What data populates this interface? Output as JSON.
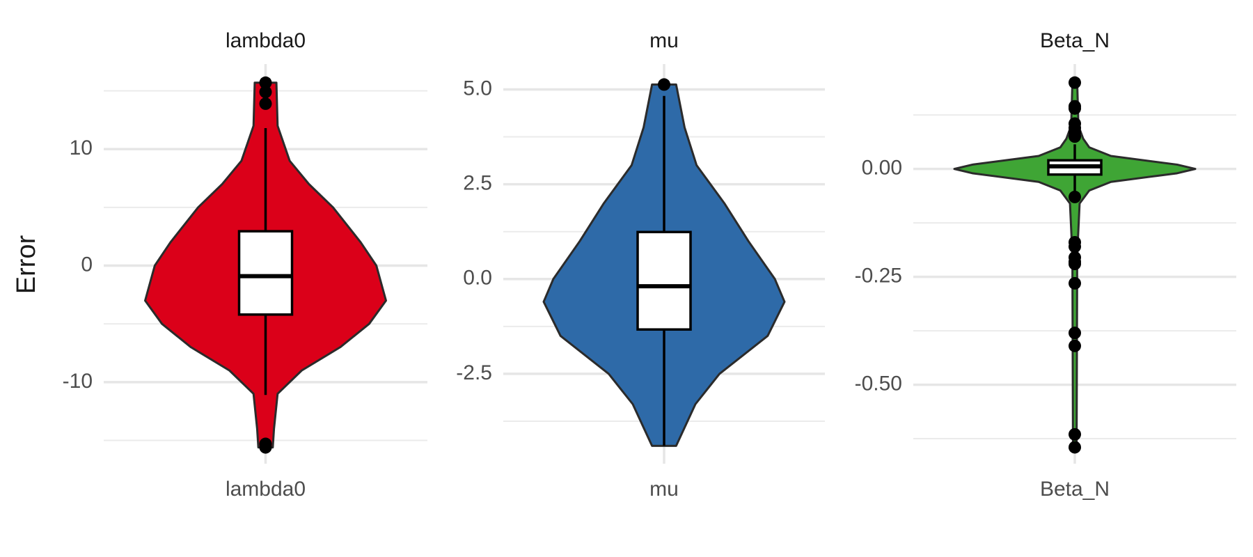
{
  "chart_data": [
    {
      "type": "violin",
      "title": "lambda0",
      "ylabel": "Error",
      "category": "lambda0",
      "color": "#db0019",
      "ylim": [
        -17,
        17.3
      ],
      "yticks": [
        -10,
        0,
        10
      ],
      "minor_grid": [
        -15,
        -5,
        5,
        15
      ],
      "grid": true,
      "violin": {
        "y": [
          15.7,
          12,
          9,
          7,
          5,
          2,
          0,
          -3,
          -5,
          -7,
          -9,
          -11,
          -14,
          -15.6
        ],
        "width": [
          0.09,
          0.1,
          0.2,
          0.36,
          0.56,
          0.79,
          0.92,
          1,
          0.86,
          0.62,
          0.3,
          0.1,
          0.07,
          0.06
        ]
      },
      "box": {
        "whisker_low": -11.1,
        "q1": -4.2,
        "median": -0.9,
        "q3": 2.95,
        "whisker_high": 11.8
      },
      "outliers": [
        15.7,
        14.9,
        13.9,
        -15.3,
        -15.6
      ]
    },
    {
      "type": "violin",
      "title": "mu",
      "category": "mu",
      "color": "#2e6aa8",
      "ylim": [
        -4.87,
        5.67
      ],
      "yticks": [
        {
          "value": -2.5,
          "label": "-2.5"
        },
        {
          "value": 0,
          "label": "0.0"
        },
        {
          "value": 2.5,
          "label": "2.5"
        },
        {
          "value": 5,
          "label": "5.0"
        }
      ],
      "minor_grid": [
        -3.75,
        -1.25,
        1.25,
        3.75
      ],
      "grid": true,
      "violin": {
        "y": [
          5.13,
          4,
          3,
          2,
          1,
          0,
          -0.6,
          -1.5,
          -2.5,
          -3.3,
          -4.4
        ],
        "width": [
          0.1,
          0.17,
          0.27,
          0.5,
          0.7,
          0.92,
          1,
          0.86,
          0.46,
          0.26,
          0.1
        ]
      },
      "box": {
        "whisker_low": -4.4,
        "q1": -1.33,
        "median": -0.19,
        "q3": 1.24,
        "whisker_high": 4.83
      },
      "outliers": [
        5.13
      ]
    },
    {
      "type": "violin",
      "title": "Beta_N",
      "category": "Beta_N",
      "color": "#3fa535",
      "ylim": [
        -0.683,
        0.243
      ],
      "yticks": [
        {
          "value": -0.5,
          "label": "-0.50"
        },
        {
          "value": -0.25,
          "label": "-0.25"
        },
        {
          "value": 0,
          "label": "0.00"
        }
      ],
      "minor_grid": [
        -0.625,
        -0.375,
        -0.125,
        0.125
      ],
      "grid": true,
      "violin": {
        "y": [
          0.2,
          0.1,
          0.07,
          0.05,
          0.03,
          0.01,
          0,
          -0.01,
          -0.03,
          -0.05,
          -0.08,
          -0.2,
          -0.645
        ],
        "width": [
          0.02,
          0.03,
          0.07,
          0.12,
          0.3,
          0.85,
          1,
          0.85,
          0.3,
          0.12,
          0.04,
          0.02,
          0.015
        ]
      },
      "box": {
        "whisker_low": -0.054,
        "q1": -0.013,
        "median": 0.006,
        "q3": 0.02,
        "whisker_high": 0.057
      },
      "outliers": [
        0.2,
        0.145,
        0.14,
        0.105,
        0.095,
        0.085,
        0.075,
        -0.065,
        -0.17,
        -0.18,
        -0.205,
        -0.215,
        -0.22,
        -0.265,
        -0.38,
        -0.41,
        -0.615,
        -0.645
      ]
    }
  ]
}
